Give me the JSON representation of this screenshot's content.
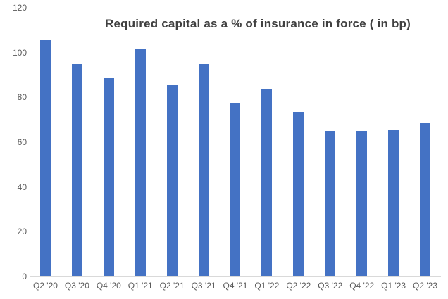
{
  "chart_data": {
    "type": "bar",
    "title": "Required capital as a % of insurance in force ( in bp)",
    "categories": [
      "Q2 '20",
      "Q3 '20",
      "Q4 '20",
      "Q1 '21",
      "Q2 '21",
      "Q3 '21",
      "Q4 '21",
      "Q1 '22",
      "Q2 '22",
      "Q3 '22",
      "Q4 '22",
      "Q1 '23",
      "Q2 '23"
    ],
    "values": [
      105.5,
      95,
      88.5,
      101.5,
      85.5,
      95,
      77.5,
      84,
      73.5,
      65,
      65,
      65.5,
      68.5
    ],
    "xlabel": "",
    "ylabel": "",
    "ylim": [
      0,
      120
    ],
    "yticks": [
      0,
      20,
      40,
      60,
      80,
      100,
      120
    ],
    "grid": false,
    "legend": "none",
    "bar_color": "#4472C4",
    "title_color": "#404040",
    "axis_label_color": "#595959",
    "axis_line_color": "#D9D9D9"
  }
}
